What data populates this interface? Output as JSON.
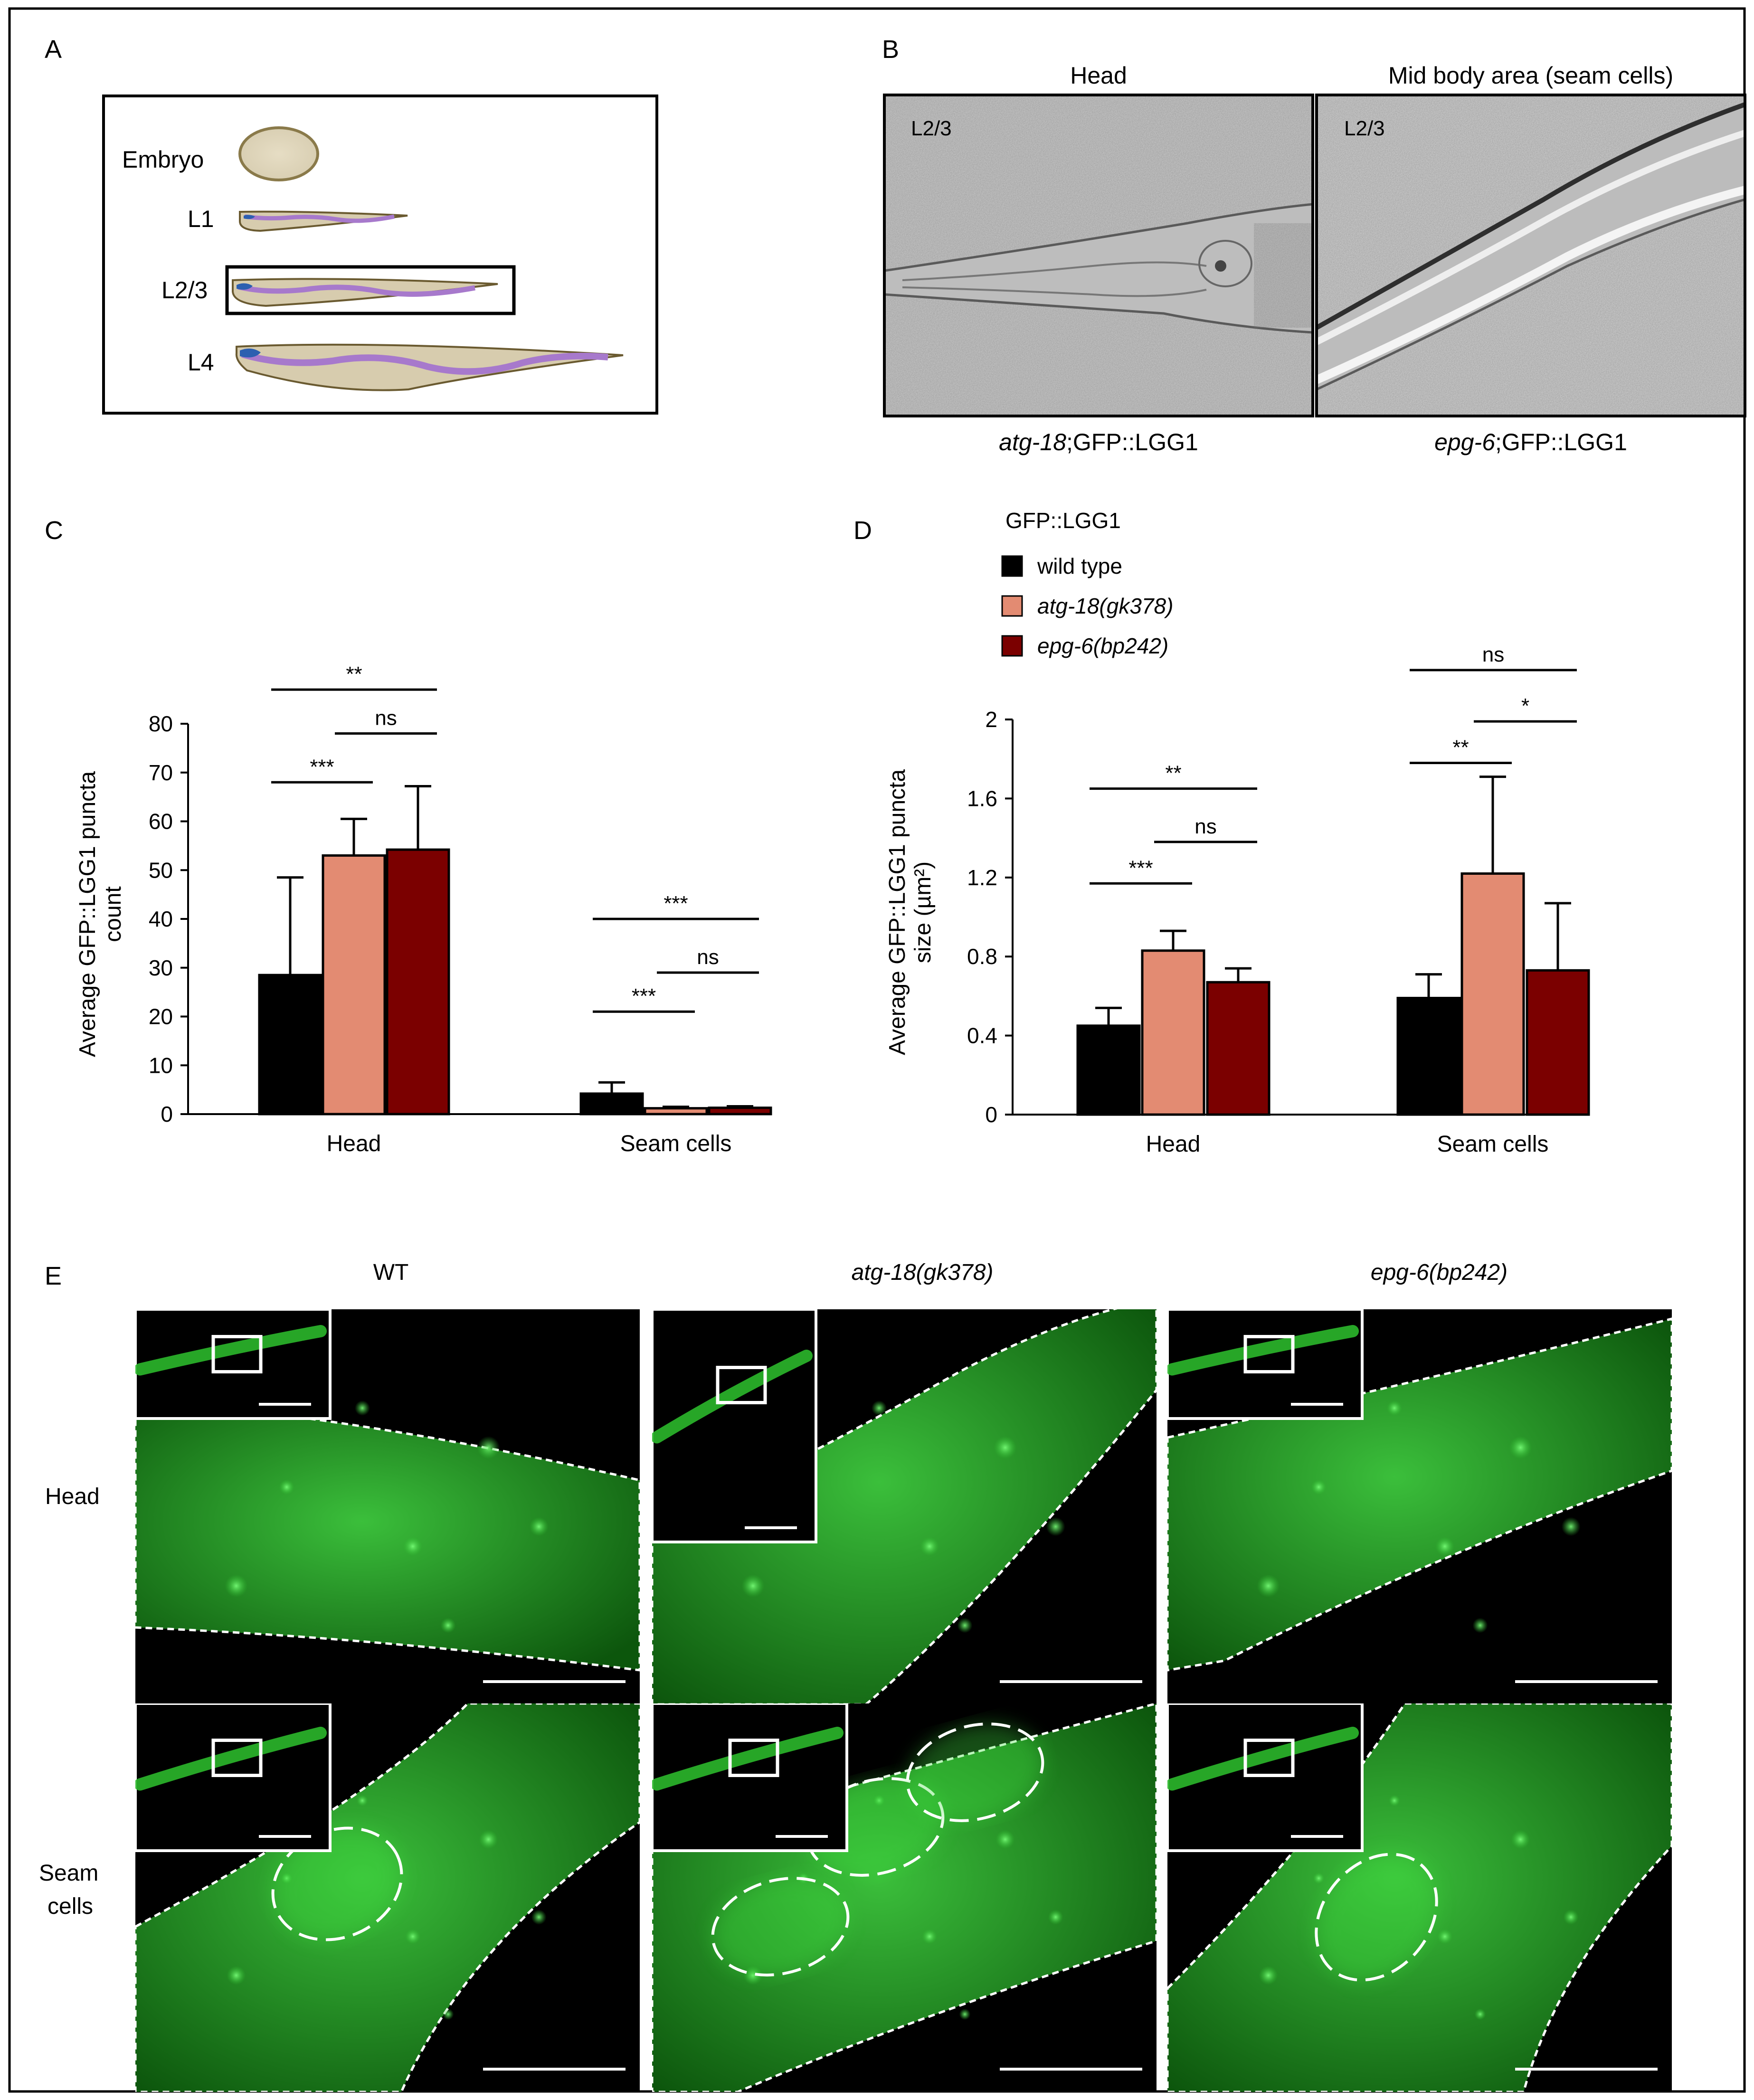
{
  "panels": {
    "A": {
      "label": "A",
      "stages": [
        "Embryo",
        "L1",
        "L2/3",
        "L4"
      ]
    },
    "B": {
      "label": "B",
      "titles": [
        "Head",
        "Mid body area (seam cells)"
      ],
      "stage_labels": [
        "L2/3",
        "L2/3"
      ],
      "captions": [
        {
          "italic": "atg-18",
          "rest": ";GFP::LGG1"
        },
        {
          "italic": "epg-6",
          "rest": ";GFP::LGG1"
        }
      ]
    },
    "C": {
      "label": "C"
    },
    "D": {
      "label": "D"
    },
    "E": {
      "label": "E",
      "columns": [
        "WT",
        "atg-18(gk378)",
        "epg-6(bp242)"
      ],
      "rows": [
        "Head",
        "Seam",
        "cells"
      ]
    }
  },
  "legend": {
    "title": "GFP::LGG1",
    "entries": [
      {
        "label": "wild type",
        "color": "#000000",
        "italic": false
      },
      {
        "label": "atg-18(gk378)",
        "color": "#E38B72",
        "italic": true
      },
      {
        "label": "epg-6(bp242)",
        "color": "#7B0000",
        "italic": true
      }
    ]
  },
  "chart_data": [
    {
      "panel": "C",
      "type": "bar",
      "categories": [
        "Head",
        "Seam cells"
      ],
      "ylabel": [
        "Average GFP::LGG1 puncta",
        "count"
      ],
      "ylim": [
        0,
        80
      ],
      "yticks": [
        0,
        10,
        20,
        30,
        40,
        50,
        60,
        70,
        80
      ],
      "series": [
        {
          "name": "wild type",
          "values": [
            28.5,
            4.2
          ],
          "errors": [
            20.0,
            2.3
          ]
        },
        {
          "name": "atg-18(gk378)",
          "values": [
            53.0,
            1.2
          ],
          "errors": [
            7.5,
            0.3
          ]
        },
        {
          "name": "epg-6(bp242)",
          "values": [
            54.2,
            1.3
          ],
          "errors": [
            13.0,
            0.3
          ]
        }
      ],
      "significance": [
        {
          "label": "***",
          "group": 0,
          "from": 0,
          "to": 1,
          "y": 68,
          "row": 0
        },
        {
          "label": "ns",
          "group": 0,
          "from": 1,
          "to": 2,
          "y": 78,
          "row": 1
        },
        {
          "label": "**",
          "group": 0,
          "from": 0,
          "to": 2,
          "y": 87,
          "row": 2
        },
        {
          "label": "***",
          "group": 1,
          "from": 0,
          "to": 1,
          "y": 21,
          "row": 0
        },
        {
          "label": "ns",
          "group": 1,
          "from": 1,
          "to": 2,
          "y": 29,
          "row": 1
        },
        {
          "label": "***",
          "group": 1,
          "from": 0,
          "to": 2,
          "y": 40,
          "row": 2
        }
      ]
    },
    {
      "panel": "D",
      "type": "bar",
      "categories": [
        "Head",
        "Seam cells"
      ],
      "ylabel": [
        "Average GFP::LGG1 puncta",
        "size (µm²)"
      ],
      "ylim": [
        0,
        2
      ],
      "yticks": [
        "0",
        "0.4",
        "0.8",
        "1.2",
        "1.6",
        "2"
      ],
      "yticks_values": [
        0,
        0.4,
        0.8,
        1.2,
        1.6,
        2
      ],
      "series": [
        {
          "name": "wild type",
          "values": [
            0.45,
            0.59
          ],
          "errors": [
            0.09,
            0.12
          ]
        },
        {
          "name": "atg-18(gk378)",
          "values": [
            0.83,
            1.22
          ],
          "errors": [
            0.1,
            0.49
          ]
        },
        {
          "name": "epg-6(bp242)",
          "values": [
            0.67,
            0.73
          ],
          "errors": [
            0.07,
            0.34
          ]
        }
      ],
      "significance": [
        {
          "label": "***",
          "group": 0,
          "from": 0,
          "to": 1,
          "y": 1.17,
          "row": 0
        },
        {
          "label": "ns",
          "group": 0,
          "from": 1,
          "to": 2,
          "y": 1.38,
          "row": 1
        },
        {
          "label": "**",
          "group": 0,
          "from": 0,
          "to": 2,
          "y": 1.65,
          "row": 2
        },
        {
          "label": "**",
          "group": 1,
          "from": 0,
          "to": 1,
          "y": 1.78,
          "row": 0
        },
        {
          "label": "*",
          "group": 1,
          "from": 1,
          "to": 2,
          "y": 1.99,
          "row": 1
        },
        {
          "label": "ns",
          "group": 1,
          "from": 0,
          "to": 2,
          "y": 2.25,
          "row": 2
        }
      ]
    }
  ]
}
